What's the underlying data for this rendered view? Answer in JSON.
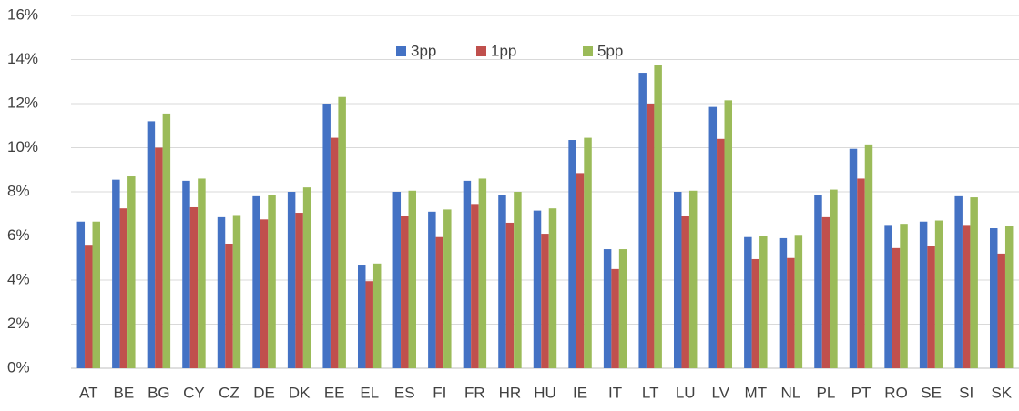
{
  "chart_data": {
    "type": "bar",
    "categories": [
      "AT",
      "BE",
      "BG",
      "CY",
      "CZ",
      "DE",
      "DK",
      "EE",
      "EL",
      "ES",
      "FI",
      "FR",
      "HR",
      "HU",
      "IE",
      "IT",
      "LT",
      "LU",
      "LV",
      "MT",
      "NL",
      "PL",
      "PT",
      "RO",
      "SE",
      "SI",
      "SK"
    ],
    "series": [
      {
        "name": "3pp",
        "color": "#4472c4",
        "values": [
          6.65,
          8.55,
          11.2,
          8.5,
          6.85,
          7.8,
          8.0,
          12.0,
          4.7,
          8.0,
          7.1,
          8.5,
          7.85,
          7.15,
          10.35,
          5.4,
          13.4,
          8.0,
          11.85,
          5.95,
          5.9,
          7.85,
          9.95,
          6.5,
          6.65,
          7.8,
          6.35
        ]
      },
      {
        "name": "1pp",
        "color": "#c0504d",
        "values": [
          5.6,
          7.25,
          10.0,
          7.3,
          5.65,
          6.75,
          7.05,
          10.45,
          3.95,
          6.9,
          5.95,
          7.45,
          6.6,
          6.1,
          8.85,
          4.5,
          12.0,
          6.9,
          10.4,
          4.95,
          5.0,
          6.85,
          8.6,
          5.45,
          5.55,
          6.5,
          5.2
        ]
      },
      {
        "name": "5pp",
        "color": "#9bbb59",
        "values": [
          6.65,
          8.7,
          11.55,
          8.6,
          6.95,
          7.85,
          8.2,
          12.3,
          4.75,
          8.05,
          7.2,
          8.6,
          8.0,
          7.25,
          10.45,
          5.4,
          13.75,
          8.05,
          12.15,
          6.0,
          6.05,
          8.1,
          10.15,
          6.55,
          6.7,
          7.75,
          6.45
        ]
      }
    ],
    "ylim": [
      0,
      16
    ],
    "yticks": [
      {
        "value": 0,
        "label": "0%"
      },
      {
        "value": 2,
        "label": "2%"
      },
      {
        "value": 4,
        "label": "4%"
      },
      {
        "value": 6,
        "label": "6%"
      },
      {
        "value": 8,
        "label": "8%"
      },
      {
        "value": 10,
        "label": "10%"
      },
      {
        "value": 12,
        "label": "12%"
      },
      {
        "value": 14,
        "label": "14%"
      },
      {
        "value": 16,
        "label": "16%"
      }
    ],
    "grid": true,
    "legend": "top"
  }
}
